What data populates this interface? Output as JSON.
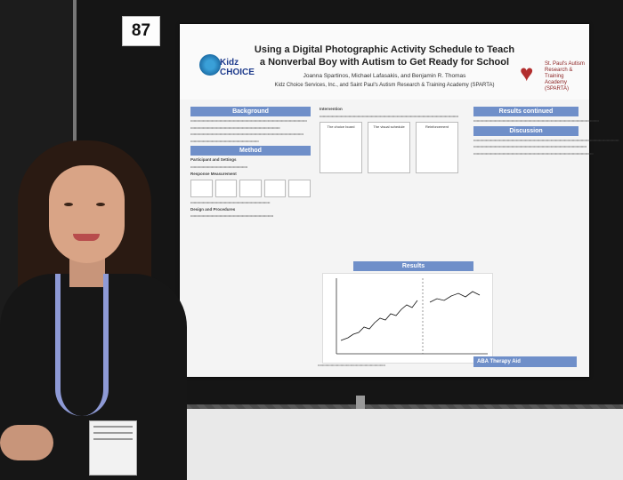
{
  "booth": {
    "number": "87"
  },
  "poster": {
    "title": "Using a Digital Photographic Activity Schedule to Teach a Nonverbal Boy with Autism to Get Ready for School",
    "authors": "Joanna Spartinos, Michael Lafasakis, and Benjamin R. Thomas",
    "affiliation": "Kidz Choice Services, Inc., and Saint Paul's Autism Research & Training Academy (SPARTA)",
    "logo_left": "Kidz CHOICE",
    "logo_right": "St. Paul's Autism Research & Training Academy (SPARTA)",
    "sections": {
      "background": "Background",
      "method": "Method",
      "results": "Results",
      "results_continued": "Results continued",
      "discussion": "Discussion",
      "aba": "ABA Therapy Aid"
    },
    "labels": {
      "participant": "Participant and Settings",
      "response": "Response Measurement",
      "design": "Design and Procedures",
      "intervention": "Intervention",
      "choice_board": "The choice board",
      "visual_schedule": "The visual schedule",
      "reinforcement": "Reinforcement"
    }
  },
  "colors": {
    "section": "#6f8fc9",
    "poster_bg": "#f4f4f4",
    "logo_blue": "#1e3b8c",
    "logo_red": "#b22d2d"
  }
}
